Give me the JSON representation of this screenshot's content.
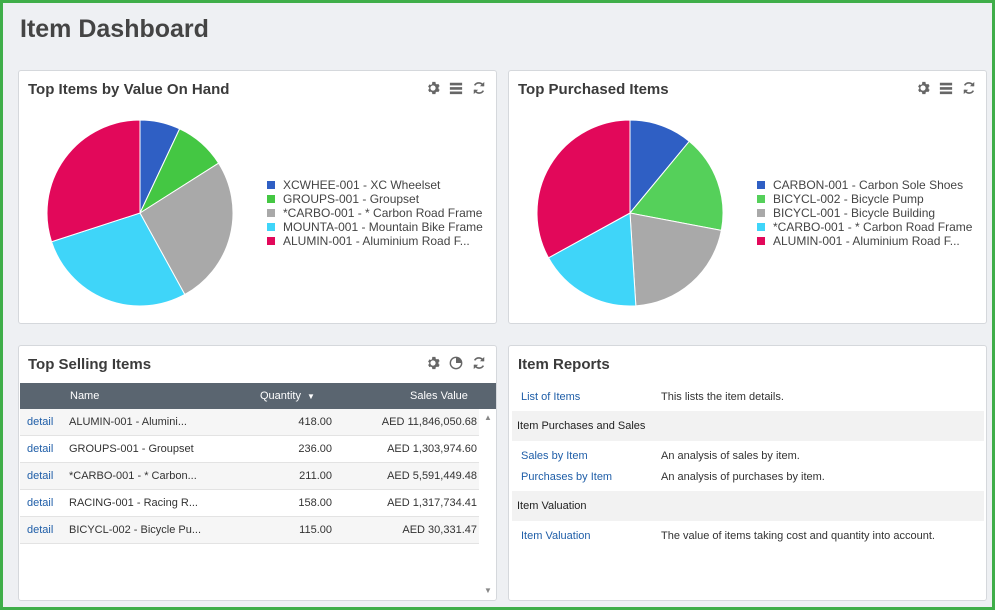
{
  "page_title": "Item Dashboard",
  "colors": {
    "border_accent": "#3fae49",
    "link": "#1f5ea8",
    "table_header": "#5a6570"
  },
  "value_on_hand": {
    "title": "Top Items by Value On Hand",
    "icons": [
      "gear-icon",
      "list-icon",
      "refresh-icon"
    ],
    "legend": [
      {
        "label": "XCWHEE-001 - XC Wheelset",
        "color": "#2f5fc4"
      },
      {
        "label": "GROUPS-001 - Groupset",
        "color": "#44c743"
      },
      {
        "label": "*CARBO-001 - * Carbon Road Frame",
        "color": "#a9a9a9"
      },
      {
        "label": "MOUNTA-001 - Mountain Bike Frame",
        "color": "#3fd5f9"
      },
      {
        "label": "ALUMIN-001 - Aluminium Road F...",
        "color": "#e2085a"
      }
    ]
  },
  "top_purchased": {
    "title": "Top Purchased Items",
    "icons": [
      "gear-icon",
      "list-icon",
      "refresh-icon"
    ],
    "legend": [
      {
        "label": "CARBON-001 - Carbon Sole Shoes",
        "color": "#2f5fc4"
      },
      {
        "label": "BICYCL-002 - Bicycle Pump",
        "color": "#55d05a"
      },
      {
        "label": "BICYCL-001 - Bicycle Building",
        "color": "#a9a9a9"
      },
      {
        "label": "*CARBO-001 - * Carbon Road Frame",
        "color": "#3fd5f9"
      },
      {
        "label": "ALUMIN-001 - Aluminium Road F...",
        "color": "#e2085a"
      }
    ]
  },
  "chart_data": [
    {
      "type": "pie",
      "title": "Top Items by Value On Hand",
      "categories": [
        "XCWHEE-001 - XC Wheelset",
        "GROUPS-001 - Groupset",
        "*CARBO-001 - * Carbon Road Frame",
        "MOUNTA-001 - Mountain Bike Frame",
        "ALUMIN-001 - Aluminium Road F..."
      ],
      "values": [
        7,
        9,
        26,
        28,
        30
      ]
    },
    {
      "type": "pie",
      "title": "Top Purchased Items",
      "categories": [
        "CARBON-001 - Carbon Sole Shoes",
        "BICYCL-002 - Bicycle Pump",
        "BICYCL-001 - Bicycle Building",
        "*CARBO-001 - * Carbon Road Frame",
        "ALUMIN-001 - Aluminium Road F..."
      ],
      "values": [
        11,
        17,
        21,
        18,
        33
      ]
    }
  ],
  "top_selling": {
    "title": "Top Selling Items",
    "icons": [
      "gear-icon",
      "pie-chart-icon",
      "refresh-icon"
    ],
    "columns": {
      "name": "Name",
      "quantity": "Quantity",
      "sales_value": "Sales Value"
    },
    "rows": [
      {
        "link": "detail",
        "name": "ALUMIN-001 - Alumini...",
        "quantity": "418.00",
        "sales_value": "AED 11,846,050.68"
      },
      {
        "link": "detail",
        "name": "GROUPS-001 - Groupset",
        "quantity": "236.00",
        "sales_value": "AED 1,303,974.60"
      },
      {
        "link": "detail",
        "name": "*CARBO-001 - * Carbon...",
        "quantity": "211.00",
        "sales_value": "AED 5,591,449.48"
      },
      {
        "link": "detail",
        "name": "RACING-001 - Racing R...",
        "quantity": "158.00",
        "sales_value": "AED 1,317,734.41"
      },
      {
        "link": "detail",
        "name": "BICYCL-002 - Bicycle Pu...",
        "quantity": "115.00",
        "sales_value": "AED 30,331.47"
      }
    ]
  },
  "item_reports": {
    "title": "Item Reports",
    "list_of_items": {
      "label": "List of Items",
      "desc": "This lists the item details."
    },
    "purchases_section": "Item Purchases and Sales",
    "sales_by_item": {
      "label": "Sales by Item",
      "desc": "An analysis of sales by item."
    },
    "purchases_by_item": {
      "label": "Purchases by Item",
      "desc": "An analysis of purchases by item."
    },
    "valuation_section": "Item Valuation",
    "item_valuation": {
      "label": "Item Valuation",
      "desc": "The value of items taking cost and quantity into account."
    }
  }
}
